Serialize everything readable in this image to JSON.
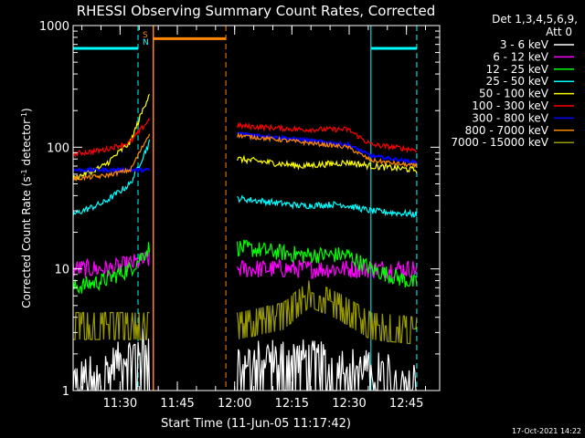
{
  "chart_data": {
    "type": "line",
    "title": "RHESSI Observing Summary Count Rates, Corrected",
    "xlabel": "Start Time (11-Jun-05 11:17:42)",
    "ylabel_main": "Corrected Count Rate (s",
    "ylabel_sup1": "-1",
    "ylabel_mid": " detector",
    "ylabel_sup2": "-1",
    "ylabel_end": ")",
    "yscale": "log",
    "ylim": [
      1,
      1000
    ],
    "xlim_minutes": [
      0,
      96
    ],
    "x_ticks": [
      "11:30",
      "11:45",
      "12:00",
      "12:15",
      "12:30",
      "12:45"
    ],
    "y_ticks": [
      "1",
      "10",
      "100",
      "1000"
    ],
    "legend_header": [
      "Det 1,3,4,5,6,9,",
      "Att 0"
    ],
    "series": [
      {
        "name": "3 - 6 keV",
        "color": "#ffffff",
        "segments": [
          {
            "x": [
              0,
              6,
              12,
              20
            ],
            "y": [
              1.3,
              1.4,
              1.8,
              2.5
            ]
          },
          {
            "x": [
              43,
              55,
              70,
              90
            ],
            "y": [
              1.8,
              2.0,
              1.7,
              1.3
            ]
          }
        ]
      },
      {
        "name": "6 - 12 keV",
        "color": "#ff00ff",
        "segments": [
          {
            "x": [
              0,
              10,
              20
            ],
            "y": [
              10,
              10,
              12
            ]
          },
          {
            "x": [
              43,
              60,
              78,
              90
            ],
            "y": [
              10,
              10,
              10,
              10
            ]
          }
        ]
      },
      {
        "name": "12 - 25 keV",
        "color": "#00ff00",
        "segments": [
          {
            "x": [
              0,
              8,
              15,
              20
            ],
            "y": [
              7,
              8,
              10,
              15
            ]
          },
          {
            "x": [
              43,
              60,
              72,
              78,
              90
            ],
            "y": [
              15,
              13,
              13,
              10,
              7.5
            ]
          }
        ]
      },
      {
        "name": "25 - 50 keV",
        "color": "#00ffff",
        "segments": [
          {
            "x": [
              0,
              8,
              15,
              20
            ],
            "y": [
              28,
              35,
              50,
              110
            ]
          },
          {
            "x": [
              43,
              60,
              70,
              78,
              90
            ],
            "y": [
              38,
              33,
              34,
              30,
              28
            ]
          }
        ]
      },
      {
        "name": "50 - 100 keV",
        "color": "#ffff00",
        "segments": [
          {
            "x": [
              0,
              8,
              15,
              20
            ],
            "y": [
              55,
              70,
              110,
              280
            ]
          },
          {
            "x": [
              43,
              60,
              72,
              78,
              90
            ],
            "y": [
              80,
              70,
              75,
              70,
              65
            ]
          }
        ]
      },
      {
        "name": "100 - 300 keV",
        "color": "#ff0000",
        "segments": [
          {
            "x": [
              0,
              8,
              15,
              20
            ],
            "y": [
              88,
              95,
              110,
              170
            ]
          },
          {
            "x": [
              43,
              60,
              72,
              78,
              90
            ],
            "y": [
              150,
              140,
              140,
              105,
              95
            ]
          }
        ]
      },
      {
        "name": "300 - 800 keV",
        "color": "#0000ff",
        "segments": [
          {
            "x": [
              0,
              20
            ],
            "y": [
              65,
              65
            ]
          },
          {
            "x": [
              43,
              60,
              72,
              78,
              90
            ],
            "y": [
              130,
              115,
              105,
              85,
              75
            ]
          }
        ]
      },
      {
        "name": "800 - 7000 keV",
        "color": "#ff8800",
        "segments": [
          {
            "x": [
              0,
              8,
              15,
              20
            ],
            "y": [
              55,
              58,
              65,
              130
            ]
          },
          {
            "x": [
              43,
              60,
              72,
              78,
              90
            ],
            "y": [
              125,
              110,
              100,
              78,
              70
            ]
          }
        ]
      },
      {
        "name": "7000 - 15000 keV",
        "color": "#999900",
        "segments": [
          {
            "x": [
              0,
              20
            ],
            "y": [
              3.5,
              3.5
            ]
          },
          {
            "x": [
              43,
              55,
              62,
              70,
              78,
              90
            ],
            "y": [
              3.5,
              4.2,
              6.5,
              5.0,
              3.5,
              3.2
            ]
          }
        ]
      }
    ],
    "state_markers": {
      "labels": [
        "S",
        "N"
      ],
      "label_colors": [
        "#ff8800",
        "#00ffff"
      ]
    },
    "intervals": {
      "night": {
        "color": "#00ffff",
        "solid_x": [
          0,
          78
        ],
        "dashed_x": [
          17,
          90
        ],
        "bar_y": 650
      },
      "saa": {
        "color": "#ff8800",
        "solid_x": 21,
        "dashed_x": 40,
        "bar_y": 780
      }
    },
    "footer_date": "17-Oct-2021 14:22"
  }
}
